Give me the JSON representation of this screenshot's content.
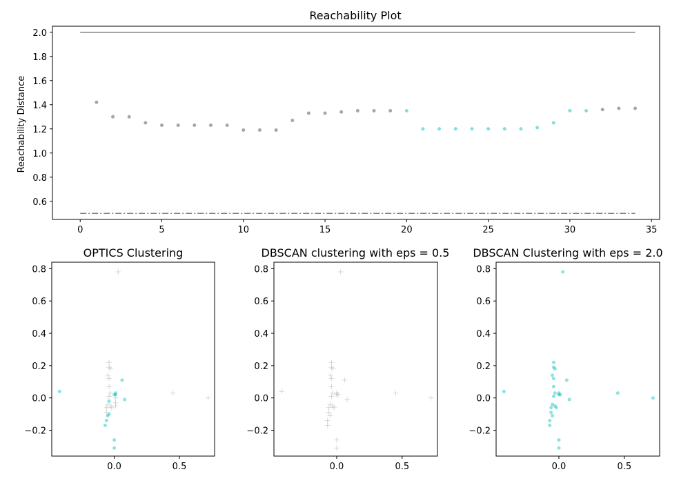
{
  "chart_data": [
    {
      "type": "scatter",
      "title": "Reachability Plot",
      "xlabel": "",
      "ylabel": "Reachability Distance",
      "xlim": [
        -1.7,
        35.5
      ],
      "ylim": [
        0.45,
        2.05
      ],
      "xticks": [
        0,
        5,
        10,
        15,
        20,
        25,
        30,
        35
      ],
      "yticks": [
        0.6,
        0.8,
        1.0,
        1.2,
        1.4,
        1.6,
        1.8,
        2.0
      ],
      "hlines": [
        {
          "y": 2.0,
          "style": "solid",
          "color": "#808080",
          "x_range": [
            0,
            34
          ]
        },
        {
          "y": 0.5,
          "style": "dashdot",
          "color": "#808080",
          "x_range": [
            0,
            34
          ]
        }
      ],
      "series": [
        {
          "color": "#808080",
          "points": [
            [
              1,
              1.42
            ],
            [
              2,
              1.3
            ],
            [
              3,
              1.3
            ],
            [
              4,
              1.25
            ],
            [
              5,
              1.23
            ],
            [
              6,
              1.23
            ],
            [
              7,
              1.23
            ],
            [
              8,
              1.23
            ],
            [
              9,
              1.23
            ],
            [
              10,
              1.19
            ],
            [
              11,
              1.19
            ],
            [
              12,
              1.19
            ],
            [
              13,
              1.27
            ],
            [
              14,
              1.33
            ],
            [
              15,
              1.33
            ],
            [
              16,
              1.34
            ],
            [
              17,
              1.35
            ],
            [
              18,
              1.35
            ],
            [
              19,
              1.35
            ],
            [
              32,
              1.36
            ],
            [
              33,
              1.37
            ],
            [
              34,
              1.37
            ]
          ]
        },
        {
          "color": "#00c0c0",
          "points": [
            [
              20,
              1.35
            ],
            [
              21,
              1.2
            ],
            [
              22,
              1.2
            ],
            [
              23,
              1.2
            ],
            [
              24,
              1.2
            ],
            [
              25,
              1.2
            ],
            [
              26,
              1.2
            ],
            [
              27,
              1.2
            ],
            [
              28,
              1.21
            ],
            [
              29,
              1.25
            ],
            [
              30,
              1.35
            ],
            [
              31,
              1.35
            ]
          ]
        }
      ]
    },
    {
      "type": "scatter",
      "title": "OPTICS Clustering",
      "xlim": [
        -0.48,
        0.77
      ],
      "ylim": [
        -0.36,
        0.84
      ],
      "xticks": [
        0.0,
        0.5
      ],
      "xtick_labels": [
        "0.0",
        "0.5"
      ],
      "yticks": [
        -0.2,
        0.0,
        0.2,
        0.4,
        0.6,
        0.8
      ],
      "ytick_labels": [
        "−0.2",
        "0.0",
        "0.2",
        "0.4",
        "0.6",
        "0.8"
      ],
      "clustered": {
        "color": "#00c0c0",
        "points": [
          [
            -0.42,
            0.04
          ],
          [
            -0.07,
            -0.17
          ],
          [
            -0.06,
            -0.14
          ],
          [
            -0.05,
            -0.11
          ],
          [
            -0.04,
            -0.1
          ],
          [
            -0.04,
            -0.02
          ],
          [
            0.0,
            -0.26
          ],
          [
            0.0,
            -0.31
          ],
          [
            0.0,
            0.02
          ],
          [
            0.01,
            0.02
          ],
          [
            0.01,
            0.03
          ],
          [
            0.06,
            0.11
          ],
          [
            0.08,
            -0.01
          ]
        ]
      },
      "noise": {
        "color": "#808080",
        "points": [
          [
            0.03,
            0.78
          ],
          [
            -0.04,
            0.22
          ],
          [
            -0.04,
            0.19
          ],
          [
            -0.03,
            0.18
          ],
          [
            -0.05,
            0.14
          ],
          [
            -0.04,
            0.12
          ],
          [
            -0.04,
            0.07
          ],
          [
            -0.03,
            0.03
          ],
          [
            -0.04,
            0.01
          ],
          [
            -0.05,
            -0.04
          ],
          [
            -0.06,
            -0.06
          ],
          [
            -0.06,
            -0.09
          ],
          [
            -0.03,
            -0.05
          ],
          [
            -0.02,
            -0.06
          ],
          [
            0.01,
            -0.03
          ],
          [
            0.01,
            -0.05
          ],
          [
            0.01,
            0.0
          ],
          [
            0.45,
            0.03
          ],
          [
            0.72,
            0.0
          ]
        ]
      }
    },
    {
      "type": "scatter",
      "title": "DBSCAN clustering with eps = 0.5",
      "xlim": [
        -0.48,
        0.77
      ],
      "ylim": [
        -0.36,
        0.84
      ],
      "xticks": [
        0.0,
        0.5
      ],
      "xtick_labels": [
        "0.0",
        "0.5"
      ],
      "yticks": [
        -0.2,
        0.0,
        0.2,
        0.4,
        0.6,
        0.8
      ],
      "ytick_labels": [
        "−0.2",
        "0.0",
        "0.2",
        "0.4",
        "0.6",
        "0.8"
      ],
      "clustered": {
        "color": "#00c0c0",
        "points": []
      },
      "noise": {
        "color": "#808080",
        "points": [
          [
            0.03,
            0.78
          ],
          [
            -0.42,
            0.04
          ],
          [
            -0.04,
            0.22
          ],
          [
            -0.04,
            0.19
          ],
          [
            -0.03,
            0.18
          ],
          [
            -0.05,
            0.14
          ],
          [
            -0.04,
            0.12
          ],
          [
            -0.04,
            0.07
          ],
          [
            -0.03,
            0.03
          ],
          [
            -0.04,
            0.01
          ],
          [
            -0.05,
            -0.04
          ],
          [
            -0.06,
            -0.06
          ],
          [
            -0.06,
            -0.09
          ],
          [
            -0.07,
            -0.14
          ],
          [
            -0.07,
            -0.17
          ],
          [
            -0.05,
            -0.11
          ],
          [
            -0.03,
            -0.05
          ],
          [
            -0.02,
            -0.06
          ],
          [
            0.0,
            0.02
          ],
          [
            0.0,
            0.03
          ],
          [
            0.01,
            0.02
          ],
          [
            0.0,
            -0.26
          ],
          [
            0.0,
            -0.31
          ],
          [
            0.06,
            0.11
          ],
          [
            0.08,
            -0.01
          ],
          [
            0.45,
            0.03
          ],
          [
            0.72,
            0.0
          ]
        ]
      }
    },
    {
      "type": "scatter",
      "title": "DBSCAN Clustering with eps = 2.0",
      "xlim": [
        -0.48,
        0.77
      ],
      "ylim": [
        -0.36,
        0.84
      ],
      "xticks": [
        0.0,
        0.5
      ],
      "xtick_labels": [
        "0.0",
        "0.5"
      ],
      "yticks": [
        -0.2,
        0.0,
        0.2,
        0.4,
        0.6,
        0.8
      ],
      "ytick_labels": [
        "−0.2",
        "0.0",
        "0.2",
        "0.4",
        "0.6",
        "0.8"
      ],
      "clustered": {
        "color": "#00c0c0",
        "points": [
          [
            0.03,
            0.78
          ],
          [
            -0.42,
            0.04
          ],
          [
            -0.04,
            0.22
          ],
          [
            -0.04,
            0.19
          ],
          [
            -0.03,
            0.18
          ],
          [
            -0.05,
            0.14
          ],
          [
            -0.04,
            0.12
          ],
          [
            -0.04,
            0.07
          ],
          [
            -0.03,
            0.03
          ],
          [
            -0.04,
            0.01
          ],
          [
            -0.05,
            -0.04
          ],
          [
            -0.06,
            -0.06
          ],
          [
            -0.06,
            -0.09
          ],
          [
            -0.07,
            -0.14
          ],
          [
            -0.07,
            -0.17
          ],
          [
            -0.05,
            -0.11
          ],
          [
            -0.03,
            -0.05
          ],
          [
            -0.02,
            -0.06
          ],
          [
            0.0,
            0.02
          ],
          [
            0.0,
            0.03
          ],
          [
            0.01,
            0.02
          ],
          [
            0.0,
            -0.26
          ],
          [
            0.0,
            -0.31
          ],
          [
            0.06,
            0.11
          ],
          [
            0.08,
            -0.01
          ],
          [
            0.45,
            0.03
          ],
          [
            0.72,
            0.0
          ]
        ]
      },
      "noise": {
        "color": "#808080",
        "points": []
      }
    }
  ]
}
